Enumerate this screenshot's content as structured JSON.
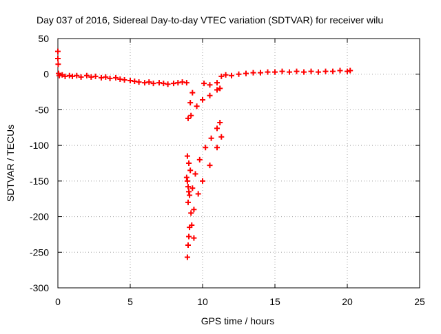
{
  "chart_data": {
    "type": "scatter",
    "title": "Day 037 of 2016, Sidereal Day-to-day VTEC variation (SDTVAR) for receiver wilu",
    "xlabel": "GPS time / hours",
    "ylabel": "SDTVAR / TECUs",
    "xlim": [
      0,
      25
    ],
    "ylim": [
      -300,
      50
    ],
    "x_ticks": [
      0,
      5,
      10,
      15,
      20,
      25
    ],
    "y_ticks": [
      -300,
      -250,
      -200,
      -150,
      -100,
      -50,
      0,
      50
    ],
    "x_tick_labels": [
      "0",
      "5",
      "10",
      "15",
      "20",
      "25"
    ],
    "y_tick_labels": [
      "-300",
      "-250",
      "-200",
      "-150",
      "-100",
      "-50",
      "0",
      "50"
    ],
    "grid": true,
    "legend": "none",
    "marker": "plus",
    "series_color": "#ff0000",
    "series": [
      {
        "points": [
          [
            0.0,
            32
          ],
          [
            0.0,
            22
          ],
          [
            0.02,
            14
          ],
          [
            0.05,
            1
          ],
          [
            0.1,
            -2
          ],
          [
            0.3,
            -1
          ],
          [
            0.5,
            -3
          ],
          [
            0.8,
            -2
          ],
          [
            1.0,
            -3
          ],
          [
            1.3,
            -2
          ],
          [
            1.6,
            -4
          ],
          [
            2.0,
            -2
          ],
          [
            2.3,
            -4
          ],
          [
            2.6,
            -3
          ],
          [
            3.0,
            -5
          ],
          [
            3.3,
            -4
          ],
          [
            3.6,
            -6
          ],
          [
            4.0,
            -5
          ],
          [
            4.3,
            -7
          ],
          [
            4.6,
            -8
          ],
          [
            5.0,
            -9
          ],
          [
            5.3,
            -10
          ],
          [
            5.6,
            -11
          ],
          [
            6.0,
            -12
          ],
          [
            6.3,
            -11
          ],
          [
            6.6,
            -13
          ],
          [
            7.0,
            -12
          ],
          [
            7.3,
            -13
          ],
          [
            7.6,
            -14
          ],
          [
            8.0,
            -13
          ],
          [
            8.3,
            -12
          ],
          [
            8.6,
            -11
          ],
          [
            8.9,
            -12
          ]
        ]
      },
      {
        "points": [
          [
            9.3,
            -26
          ],
          [
            9.15,
            -40
          ],
          [
            9.0,
            -62
          ],
          [
            9.2,
            -58
          ],
          [
            9.6,
            -45
          ],
          [
            10.0,
            -36
          ],
          [
            10.5,
            -30
          ],
          [
            11.0,
            -22
          ],
          [
            11.2,
            -20
          ]
        ]
      },
      {
        "points": [
          [
            10.1,
            -13
          ],
          [
            10.5,
            -15
          ],
          [
            11.0,
            -12
          ],
          [
            11.3,
            -3
          ],
          [
            11.6,
            -1
          ],
          [
            12.0,
            -2
          ],
          [
            12.5,
            0
          ],
          [
            13.0,
            1
          ],
          [
            13.5,
            2
          ],
          [
            14.0,
            2
          ],
          [
            14.5,
            3
          ],
          [
            15.0,
            3
          ],
          [
            15.5,
            4
          ],
          [
            16.0,
            3
          ],
          [
            16.5,
            4
          ],
          [
            17.0,
            3
          ],
          [
            17.5,
            4
          ],
          [
            18.0,
            3
          ],
          [
            18.5,
            4
          ],
          [
            19.0,
            4
          ],
          [
            19.5,
            5
          ],
          [
            20.0,
            4
          ],
          [
            20.2,
            5
          ]
        ]
      },
      {
        "points": [
          [
            8.95,
            -115
          ],
          [
            9.05,
            -125
          ],
          [
            9.15,
            -135
          ],
          [
            8.9,
            -145
          ],
          [
            8.95,
            -150
          ],
          [
            9.0,
            -158
          ],
          [
            9.05,
            -165
          ],
          [
            9.1,
            -170
          ],
          [
            9.0,
            -180
          ],
          [
            9.3,
            -160
          ],
          [
            9.5,
            -140
          ],
          [
            9.8,
            -120
          ],
          [
            10.2,
            -103
          ],
          [
            10.6,
            -90
          ],
          [
            11.0,
            -76
          ],
          [
            11.2,
            -68
          ]
        ]
      },
      {
        "points": [
          [
            9.4,
            -230
          ],
          [
            9.25,
            -212
          ],
          [
            9.2,
            -195
          ],
          [
            9.1,
            -215
          ],
          [
            9.05,
            -228
          ],
          [
            9.0,
            -240
          ],
          [
            8.95,
            -257
          ],
          [
            9.4,
            -190
          ],
          [
            9.7,
            -168
          ],
          [
            10.0,
            -150
          ],
          [
            10.5,
            -128
          ],
          [
            11.0,
            -103
          ],
          [
            11.3,
            -88
          ]
        ]
      }
    ]
  }
}
